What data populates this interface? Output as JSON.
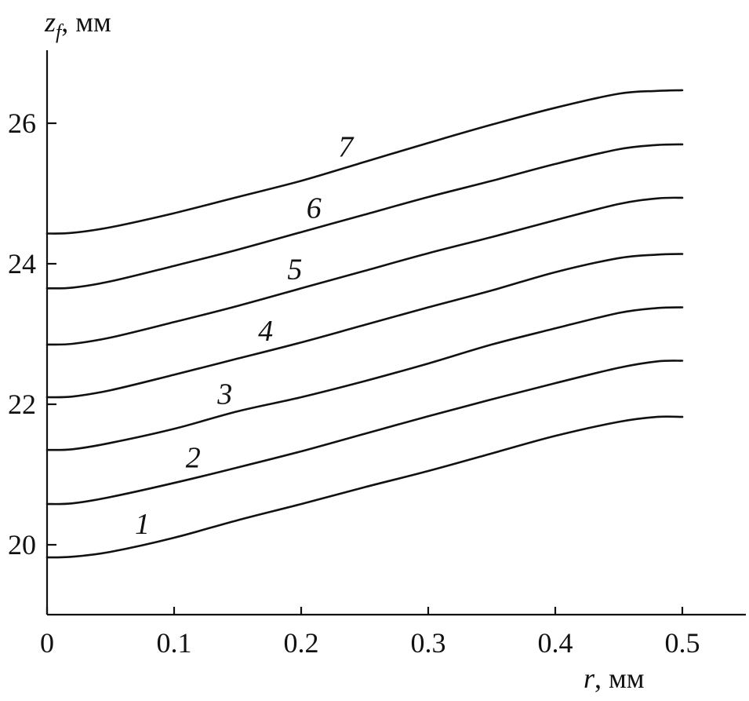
{
  "chart_data": {
    "type": "line",
    "xlabel": {
      "var": "r",
      "unit": ", мм"
    },
    "ylabel": {
      "var": "z",
      "sub": "f",
      "unit": ", мм"
    },
    "xlim": [
      0,
      0.55
    ],
    "ylim": [
      19.0,
      27.0
    ],
    "xticks": [
      0,
      0.1,
      0.2,
      0.3,
      0.4,
      0.5
    ],
    "xtick_labels": [
      "0",
      "0.1",
      "0.2",
      "0.3",
      "0.4",
      "0.5"
    ],
    "yticks": [
      20,
      22,
      24,
      26
    ],
    "ytick_labels": [
      "20",
      "22",
      "24",
      "26"
    ],
    "grid": false,
    "legend": "inline labels",
    "line_color": "#111111",
    "x": [
      0,
      0.02,
      0.05,
      0.1,
      0.15,
      0.2,
      0.25,
      0.3,
      0.35,
      0.4,
      0.45,
      0.48,
      0.5
    ],
    "series": [
      {
        "name": "1",
        "label_at": 0.075,
        "values": [
          19.82,
          19.83,
          19.9,
          20.1,
          20.35,
          20.58,
          20.82,
          21.05,
          21.3,
          21.55,
          21.75,
          21.82,
          21.82
        ]
      },
      {
        "name": "2",
        "label_at": 0.115,
        "values": [
          20.58,
          20.59,
          20.68,
          20.88,
          21.1,
          21.33,
          21.58,
          21.83,
          22.07,
          22.3,
          22.52,
          22.61,
          22.62
        ]
      },
      {
        "name": "3",
        "label_at": 0.14,
        "values": [
          21.35,
          21.36,
          21.45,
          21.65,
          21.9,
          22.1,
          22.33,
          22.58,
          22.85,
          23.08,
          23.3,
          23.37,
          23.38
        ]
      },
      {
        "name": "4",
        "label_at": 0.172,
        "values": [
          22.1,
          22.11,
          22.2,
          22.42,
          22.65,
          22.88,
          23.13,
          23.38,
          23.62,
          23.88,
          24.08,
          24.13,
          24.14
        ]
      },
      {
        "name": "5",
        "label_at": 0.195,
        "values": [
          22.85,
          22.86,
          22.95,
          23.17,
          23.4,
          23.65,
          23.9,
          24.15,
          24.38,
          24.62,
          24.85,
          24.93,
          24.94
        ]
      },
      {
        "name": "6",
        "label_at": 0.21,
        "values": [
          23.65,
          23.66,
          23.75,
          23.97,
          24.2,
          24.45,
          24.7,
          24.95,
          25.18,
          25.42,
          25.63,
          25.69,
          25.7
        ]
      },
      {
        "name": "7",
        "label_at": 0.235,
        "values": [
          24.43,
          24.44,
          24.52,
          24.72,
          24.95,
          25.18,
          25.45,
          25.72,
          25.98,
          26.22,
          26.42,
          26.46,
          26.47
        ]
      }
    ]
  }
}
